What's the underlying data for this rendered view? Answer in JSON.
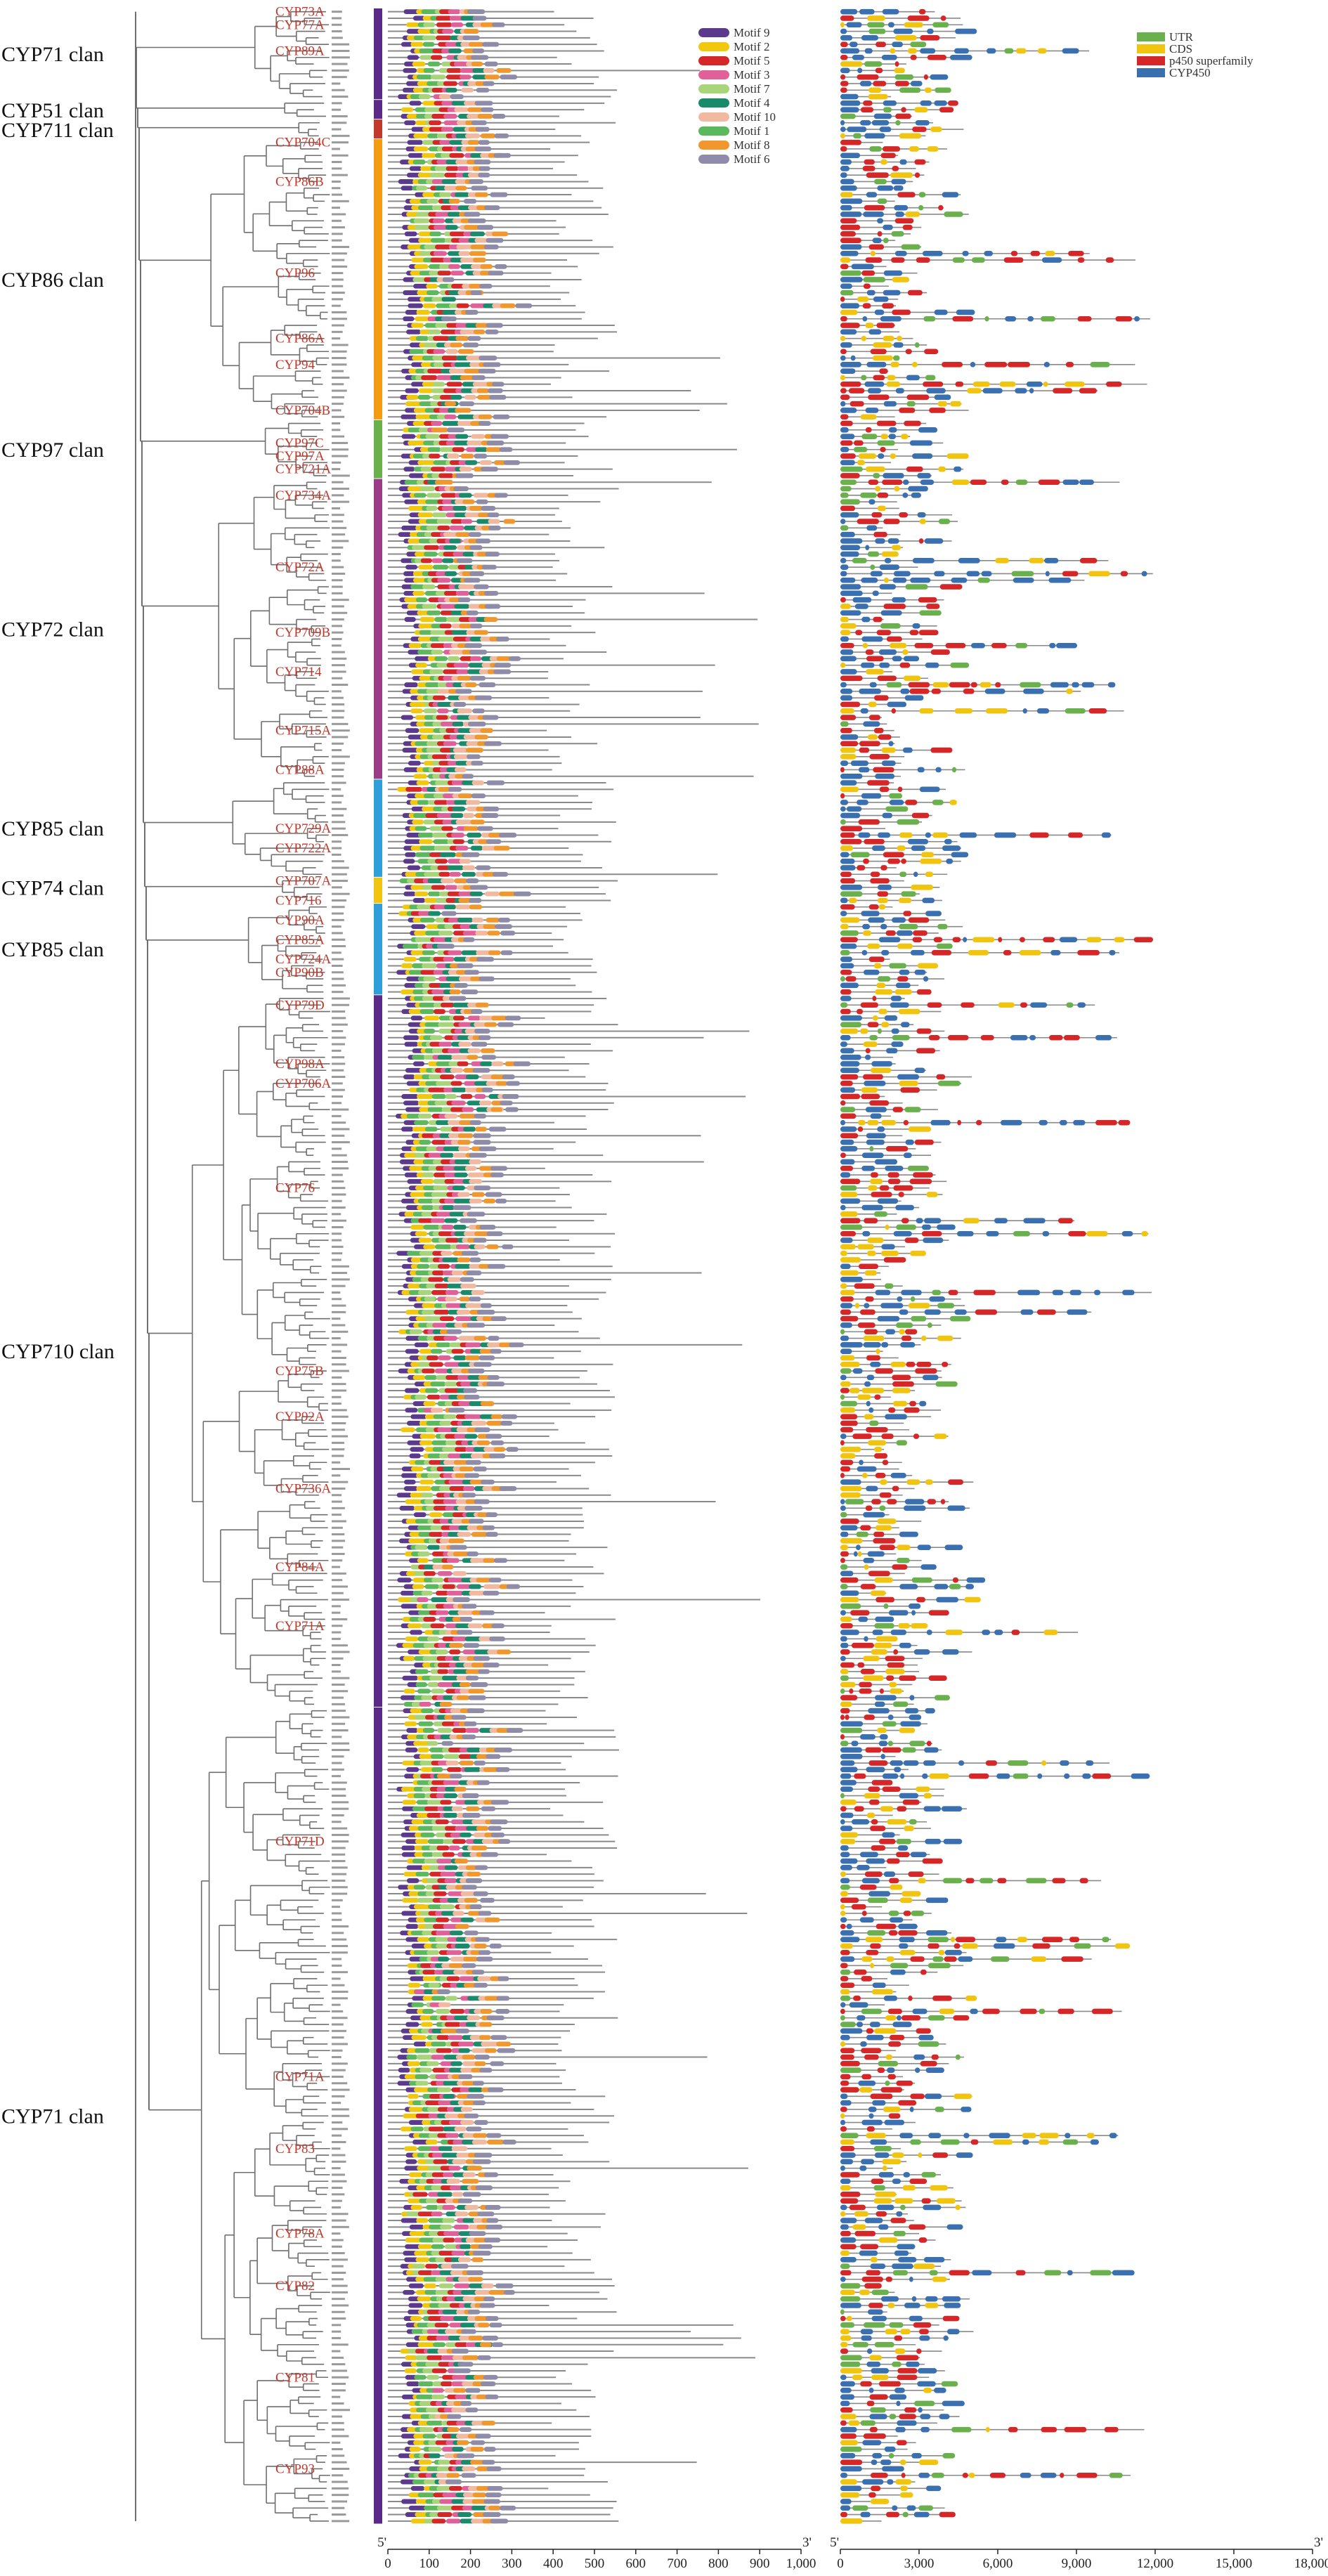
{
  "clans": [
    {
      "label": "CYP71 clan",
      "color": "#5b2a86",
      "from": 0,
      "to": 14
    },
    {
      "label": "CYP51 clan",
      "color": "#5b2a86",
      "from": 14,
      "to": 17
    },
    {
      "label": "CYP711 clan",
      "color": "#c0392b",
      "from": 17,
      "to": 20
    },
    {
      "label": "CYP86 clan",
      "color": "#f39c12",
      "from": 20,
      "to": 63
    },
    {
      "label": "CYP97 clan",
      "color": "#6ab04c",
      "from": 63,
      "to": 72
    },
    {
      "label": "CYP72 clan",
      "color": "#9b3d86",
      "from": 72,
      "to": 118
    },
    {
      "label": "CYP85 clan",
      "color": "#2e9fd8",
      "from": 118,
      "to": 133
    },
    {
      "label": "CYP74 clan",
      "color": "#f1c40f",
      "from": 133,
      "to": 137
    },
    {
      "label": "CYP85 clan",
      "color": "#2e9fd8",
      "from": 137,
      "to": 151
    },
    {
      "label": "CYP710 clan",
      "color": "#5b2a86",
      "from": 151,
      "to": 260
    },
    {
      "label": "CYP71 clan",
      "color": "#5b2a86",
      "from": 260,
      "to": 385
    }
  ],
  "families": [
    {
      "label": "CYP73A",
      "row": 0
    },
    {
      "label": "CYP77A",
      "row": 2
    },
    {
      "label": "CYP89A",
      "row": 6
    },
    {
      "label": "CYP704C",
      "row": 20
    },
    {
      "label": "CYP86B",
      "row": 26
    },
    {
      "label": "CYP96",
      "row": 40
    },
    {
      "label": "CYP86A",
      "row": 50
    },
    {
      "label": "CYP94",
      "row": 54
    },
    {
      "label": "CYP704B",
      "row": 61
    },
    {
      "label": "CYP97C",
      "row": 66
    },
    {
      "label": "CYP97A",
      "row": 68
    },
    {
      "label": "CYP721A",
      "row": 70
    },
    {
      "label": "CYP734A",
      "row": 74
    },
    {
      "label": "CYP72A",
      "row": 85
    },
    {
      "label": "CYP709B",
      "row": 95
    },
    {
      "label": "CYP714",
      "row": 101
    },
    {
      "label": "CYP715A",
      "row": 110
    },
    {
      "label": "CYP88A",
      "row": 116
    },
    {
      "label": "CYP729A",
      "row": 125
    },
    {
      "label": "CYP722A",
      "row": 128
    },
    {
      "label": "CYP707A",
      "row": 133
    },
    {
      "label": "CYP716",
      "row": 136
    },
    {
      "label": "CYP90A",
      "row": 139
    },
    {
      "label": "CYP85A",
      "row": 142
    },
    {
      "label": "CYP724A",
      "row": 145
    },
    {
      "label": "CYP90B",
      "row": 147
    },
    {
      "label": "CYP79D",
      "row": 152
    },
    {
      "label": "CYP98A",
      "row": 161
    },
    {
      "label": "CYP706A",
      "row": 164
    },
    {
      "label": "CYP76",
      "row": 180
    },
    {
      "label": "CYP75B",
      "row": 208
    },
    {
      "label": "CYP92A",
      "row": 215
    },
    {
      "label": "CYP736A",
      "row": 226
    },
    {
      "label": "CYP84A",
      "row": 238
    },
    {
      "label": "CYP71A",
      "row": 247
    },
    {
      "label": "CYP71D",
      "row": 280
    },
    {
      "label": "CYP71A",
      "row": 316
    },
    {
      "label": "CYP83",
      "row": 327
    },
    {
      "label": "CYP78A",
      "row": 340
    },
    {
      "label": "CYP82",
      "row": 348
    },
    {
      "label": "CYP81",
      "row": 362
    },
    {
      "label": "CYP93",
      "row": 376
    }
  ],
  "motif_legend": [
    {
      "label": "Motif 9",
      "color": "#5b3a8e"
    },
    {
      "label": "Motif 2",
      "color": "#f2c80f"
    },
    {
      "label": "Motif 5",
      "color": "#d62728"
    },
    {
      "label": "Motif 3",
      "color": "#e0609a"
    },
    {
      "label": "Motif 7",
      "color": "#a8d47a"
    },
    {
      "label": "Motif 4",
      "color": "#1a8b6a"
    },
    {
      "label": "Motif 10",
      "color": "#f0b9a0"
    },
    {
      "label": "Motif 1",
      "color": "#5cb85c"
    },
    {
      "label": "Motif 8",
      "color": "#f0982e"
    },
    {
      "label": "Motif 6",
      "color": "#8e8ca8"
    }
  ],
  "gene_legend": [
    {
      "label": "UTR",
      "color": "#6ab04c"
    },
    {
      "label": "CDS",
      "color": "#f1c40f"
    },
    {
      "label": "p450 superfamily",
      "color": "#d62728"
    },
    {
      "label": "CYP450",
      "color": "#3a6fb0"
    }
  ],
  "protein_axis": {
    "ticks": [
      "0",
      "100",
      "200",
      "300",
      "400",
      "500",
      "600",
      "700",
      "800",
      "900",
      "1,000"
    ],
    "start_label": "5'",
    "end_label": "3'",
    "min": 0,
    "max": 1000
  },
  "gene_axis": {
    "ticks": [
      "0",
      "3,000",
      "6,000",
      "9,000",
      "12,000",
      "15,000",
      "18,000"
    ],
    "start_label": "5'",
    "end_label": "3'",
    "min": 0,
    "max": 18000
  }
}
